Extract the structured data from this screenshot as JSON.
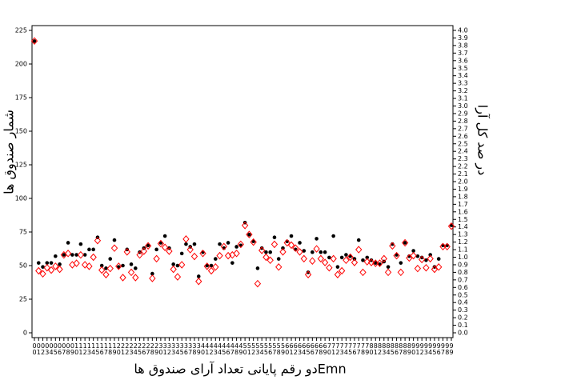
{
  "chart_data": {
    "type": "scatter",
    "x_label": "Emnدو رقم پایانی تعداد آرای صندوق ها",
    "y_label": "شمار صندوق ها",
    "y2_label": "در صد کل آرا",
    "categories": [
      "00",
      "01",
      "02",
      "03",
      "04",
      "05",
      "06",
      "07",
      "08",
      "09",
      "10",
      "11",
      "12",
      "13",
      "14",
      "15",
      "16",
      "17",
      "18",
      "19",
      "20",
      "21",
      "22",
      "23",
      "24",
      "25",
      "26",
      "27",
      "28",
      "29",
      "30",
      "31",
      "32",
      "33",
      "34",
      "35",
      "36",
      "37",
      "38",
      "39",
      "40",
      "41",
      "42",
      "43",
      "44",
      "45",
      "46",
      "47",
      "48",
      "49",
      "50",
      "51",
      "52",
      "53",
      "54",
      "55",
      "56",
      "57",
      "58",
      "59",
      "60",
      "61",
      "62",
      "63",
      "64",
      "65",
      "66",
      "67",
      "68",
      "69",
      "70",
      "71",
      "72",
      "73",
      "74",
      "75",
      "76",
      "77",
      "78",
      "79",
      "80",
      "81",
      "82",
      "83",
      "84",
      "85",
      "86",
      "87",
      "88",
      "89",
      "90",
      "91",
      "92",
      "93",
      "94",
      "95",
      "96",
      "97",
      "98",
      "99"
    ],
    "series": [
      {
        "color": "#000000",
        "marker": "dot",
        "values": [
          217,
          52,
          49,
          52,
          52,
          57,
          51,
          58,
          67,
          58,
          58,
          66,
          58,
          62,
          62,
          71,
          50,
          48,
          55,
          69,
          49,
          50,
          62,
          51,
          48,
          60,
          63,
          65,
          44,
          62,
          67,
          72,
          63,
          51,
          50,
          59,
          66,
          64,
          66,
          42,
          60,
          50,
          50,
          55,
          66,
          63,
          67,
          52,
          64,
          65,
          82,
          73,
          68,
          48,
          63,
          60,
          60,
          71,
          55,
          63,
          68,
          72,
          62,
          67,
          61,
          45,
          60,
          70,
          60,
          60,
          56,
          72,
          49,
          56,
          58,
          57,
          55,
          69,
          54,
          56,
          54,
          52,
          51,
          53,
          49,
          66,
          58,
          52,
          67,
          57,
          61,
          57,
          56,
          54,
          58,
          49,
          55,
          65,
          65,
          80
        ]
      },
      {
        "color": "#ff0000",
        "marker": "diamond",
        "axis": "y2",
        "values": [
          3.86,
          0.82,
          0.78,
          0.86,
          0.83,
          0.88,
          0.84,
          1.03,
          1.05,
          0.9,
          0.92,
          1.03,
          0.9,
          0.88,
          1.0,
          1.22,
          0.83,
          0.77,
          0.85,
          1.12,
          0.88,
          0.73,
          1.07,
          0.8,
          0.73,
          1.03,
          1.08,
          1.15,
          0.72,
          0.98,
          1.18,
          1.13,
          1.08,
          0.84,
          0.74,
          0.9,
          1.24,
          1.1,
          1.01,
          0.68,
          1.05,
          0.88,
          0.82,
          0.87,
          1.02,
          1.14,
          1.02,
          1.03,
          1.05,
          1.17,
          1.42,
          1.3,
          1.2,
          0.65,
          1.09,
          1.0,
          0.96,
          1.17,
          0.87,
          1.07,
          1.19,
          1.16,
          1.12,
          1.07,
          0.98,
          0.77,
          0.95,
          1.11,
          0.98,
          0.93,
          0.86,
          0.98,
          0.77,
          0.82,
          0.96,
          1.0,
          0.93,
          1.1,
          0.8,
          0.94,
          0.93,
          0.92,
          0.92,
          0.98,
          0.8,
          1.15,
          1.02,
          0.8,
          1.19,
          0.99,
          1.02,
          0.85,
          0.97,
          0.86,
          0.98,
          0.84,
          0.87,
          1.14,
          1.14,
          1.41
        ]
      }
    ],
    "ylim": [
      0,
      225
    ],
    "yticks": [
      0,
      25,
      50,
      75,
      100,
      125,
      150,
      175,
      200,
      225
    ],
    "y2lim": [
      0,
      4
    ],
    "y2ticks": [
      {
        "value": 0,
        "label": "0.0"
      },
      0.1,
      0.2,
      0.3,
      0.4,
      0.5,
      0.6,
      0.7,
      0.8,
      0.9,
      {
        "value": 1,
        "label": "1.0"
      },
      1.1,
      1.2,
      1.3,
      1.4,
      1.5,
      1.6,
      1.7,
      1.8,
      1.9,
      {
        "value": 2,
        "label": "2.0"
      },
      2.1,
      2.2,
      2.3,
      2.4,
      2.5,
      2.6,
      2.7,
      2.8,
      2.9,
      {
        "value": 3,
        "label": "3.0"
      },
      3.1,
      3.2,
      3.3,
      3.4,
      3.5,
      3.6,
      3.7,
      3.8,
      3.9,
      {
        "value": 4,
        "label": "4.0"
      }
    ],
    "grid": false
  }
}
